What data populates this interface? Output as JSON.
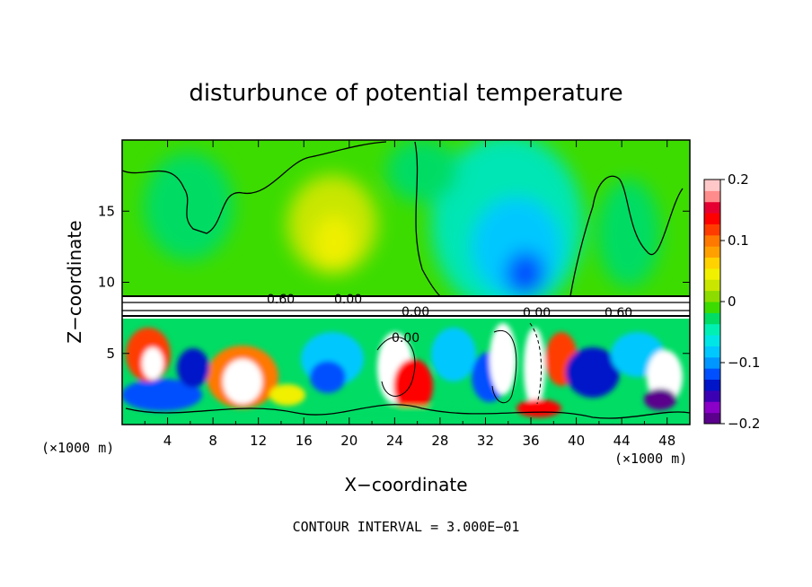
{
  "chart_data": {
    "type": "heatmap",
    "title": "disturbunce of potential temperature",
    "xlabel": "X−coordinate",
    "ylabel": "Z−coordinate",
    "x_unit": "(×1000 m)",
    "y_unit": "(×1000 m)",
    "xlim": [
      0,
      50
    ],
    "ylim": [
      0,
      20
    ],
    "x_ticks": [
      "4",
      "8",
      "12",
      "16",
      "20",
      "24",
      "28",
      "32",
      "36",
      "40",
      "44",
      "48"
    ],
    "y_ticks": [
      "5",
      "10",
      "15"
    ],
    "colorbar": {
      "range": [
        -0.2,
        0.2
      ],
      "tick_labels": [
        "0.2",
        "0.1",
        "0",
        "−0.1",
        "−0.2"
      ],
      "colors": [
        "#5a008c",
        "#8a00c8",
        "#3c00b4",
        "#0014c8",
        "#0050ff",
        "#0096ff",
        "#00c8ff",
        "#00e6e6",
        "#00f0b4",
        "#00dc64",
        "#3cdc00",
        "#8cdc00",
        "#c8e600",
        "#f0f000",
        "#ffd200",
        "#ffa000",
        "#ff7800",
        "#ff3c00",
        "#ff0000",
        "#e60032",
        "#ff8c8c",
        "#ffc8c8"
      ]
    },
    "contour_labels": [
      "0.60",
      "0.00",
      "0.00",
      "0.00",
      "0.00",
      "0.60"
    ],
    "contour_interval_text": "CONTOUR INTERVAL = 3.000E−01"
  }
}
